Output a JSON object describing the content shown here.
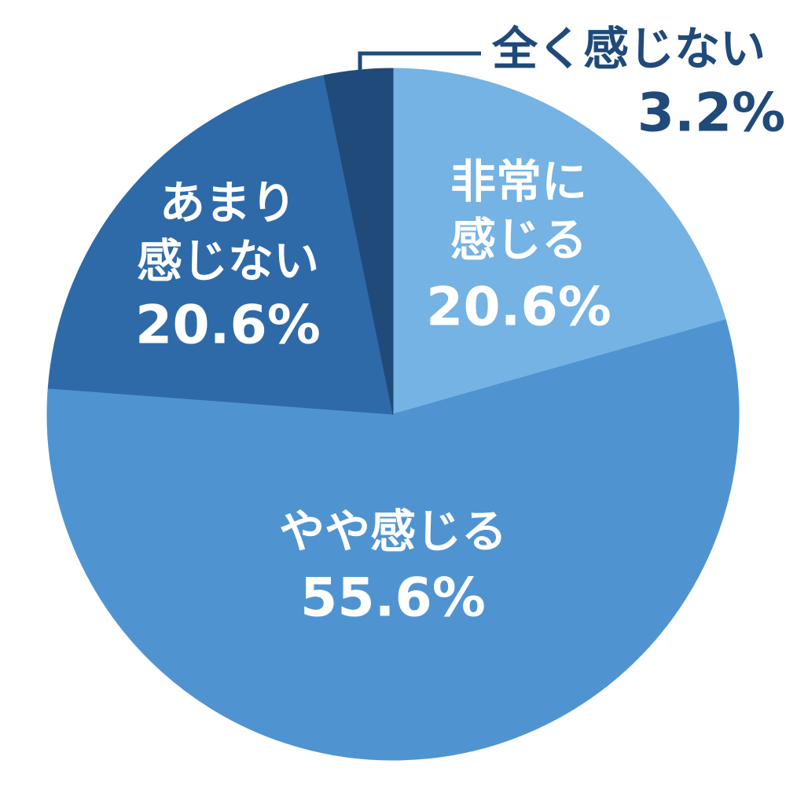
{
  "chart_data": {
    "type": "pie",
    "categories": [
      [
        "非常に",
        "感じる"
      ],
      [
        "やや感じる"
      ],
      [
        "あまり",
        "感じない"
      ],
      [
        "全く感じない"
      ]
    ],
    "values": [
      20.6,
      55.6,
      20.6,
      3.2
    ],
    "value_labels": [
      "20.6%",
      "55.6%",
      "20.6%",
      "3.2%"
    ],
    "colors": [
      "#74b3e3",
      "#4f94d0",
      "#2e6aa8",
      "#1f4a7a"
    ]
  }
}
